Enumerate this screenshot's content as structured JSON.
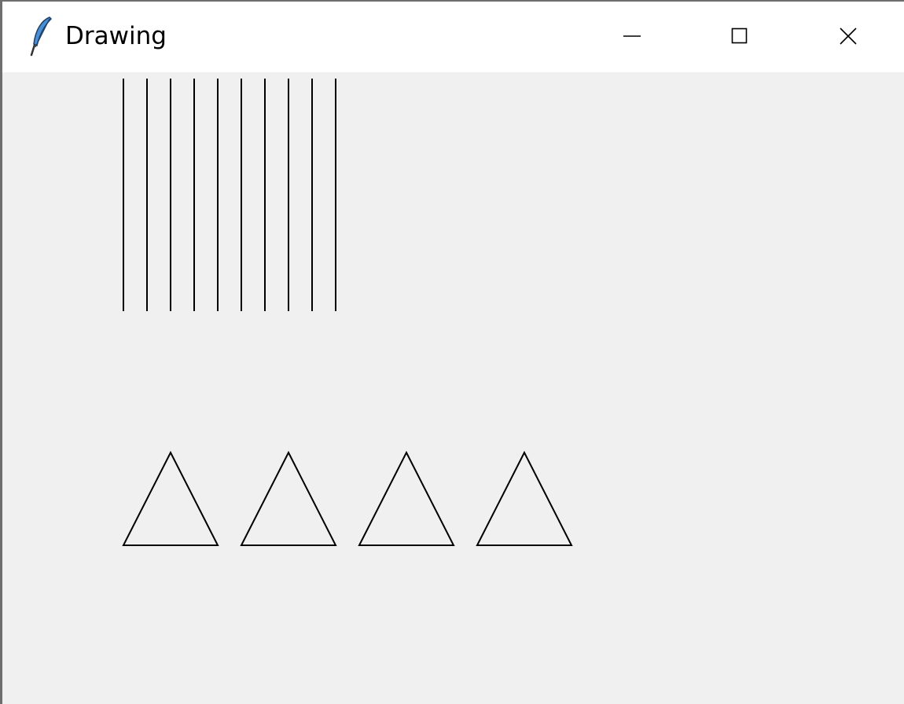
{
  "window": {
    "title": "Drawing",
    "controls": [
      "minimize",
      "maximize",
      "close"
    ]
  },
  "canvas": {
    "background": "#f0f0f0",
    "stroke_color": "#000000",
    "vertical_line_count": 10,
    "triangle_count": 4
  }
}
